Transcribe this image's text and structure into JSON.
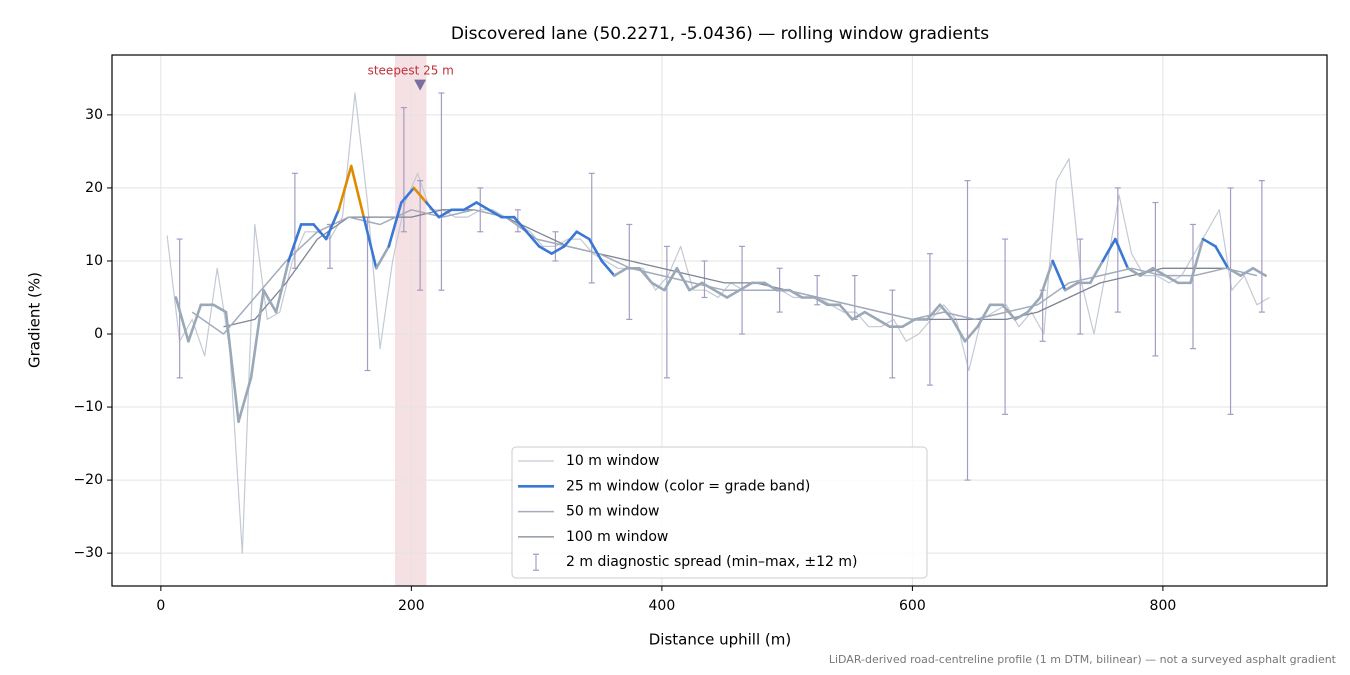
{
  "chart_data": {
    "type": "line",
    "title": "Discovered lane (50.2271, -5.0436) — rolling window gradients",
    "xlabel": "Distance uphill (m)",
    "ylabel": "Gradient (%)",
    "note": "LiDAR-derived road-centreline profile (1 m DTM, bilinear) — not a surveyed asphalt gradient",
    "xlim": [
      -39,
      931
    ],
    "ylim": [
      -34.5,
      38.2
    ],
    "xticks": [
      0,
      200,
      400,
      600,
      800
    ],
    "yticks": [
      {
        "value": -30,
        "label": "−30"
      },
      {
        "value": -20,
        "label": "−20"
      },
      {
        "value": -10,
        "label": "−10"
      },
      0,
      10,
      20,
      30
    ],
    "grid": true,
    "legend": "lower center",
    "highlight": {
      "x": [
        187,
        212
      ],
      "color": "#e8b4bc",
      "label": "steepest 25 m",
      "label_color": "#c0303a",
      "marker_x": 207,
      "marker_y": 34,
      "marker_color": "#7a6f9c"
    },
    "series": [
      {
        "name": "10 m window",
        "color": "#c3cad4",
        "width": 1.2,
        "x": [
          5,
          15,
          25,
          35,
          45,
          55,
          65,
          75,
          85,
          95,
          105,
          115,
          125,
          135,
          145,
          155,
          165,
          175,
          185,
          195,
          205,
          215,
          225,
          235,
          245,
          255,
          265,
          275,
          285,
          295,
          305,
          315,
          325,
          335,
          345,
          355,
          365,
          375,
          385,
          395,
          405,
          415,
          425,
          435,
          445,
          455,
          465,
          475,
          485,
          495,
          505,
          515,
          525,
          535,
          545,
          555,
          565,
          575,
          585,
          595,
          605,
          615,
          625,
          635,
          645,
          655,
          665,
          675,
          685,
          695,
          705,
          715,
          725,
          735,
          745,
          755,
          765,
          775,
          785,
          795,
          805,
          815,
          825,
          835,
          845,
          855,
          865,
          875,
          885
        ],
        "values": [
          13.5,
          -1,
          2,
          -3,
          9,
          -2,
          -30,
          15,
          2,
          3,
          10,
          14,
          14,
          13,
          16,
          33,
          18,
          -2,
          10,
          18,
          22,
          17,
          17,
          16,
          16,
          17,
          17,
          16,
          15,
          14,
          12,
          12,
          13,
          13,
          11,
          10,
          9,
          9,
          9,
          6,
          8,
          12,
          6,
          6,
          5,
          7,
          6,
          6,
          6,
          6,
          5,
          5,
          5,
          4,
          3,
          3,
          1,
          1,
          2,
          -1,
          0,
          2,
          4,
          2,
          -5,
          2,
          3,
          4,
          1,
          3,
          0,
          21,
          24,
          7,
          0,
          9,
          19,
          11,
          8,
          8,
          7,
          8,
          11,
          14,
          17,
          6,
          8,
          4,
          5
        ]
      },
      {
        "name": "25 m window (color = grade band)",
        "color": "#3a78d4",
        "width": 2.6,
        "x": [
          12,
          22,
          32,
          42,
          52,
          62,
          72,
          82,
          92,
          102,
          112,
          122,
          132,
          142,
          152,
          162,
          172,
          182,
          192,
          202,
          212,
          222,
          232,
          242,
          252,
          262,
          272,
          282,
          292,
          302,
          312,
          322,
          332,
          342,
          352,
          362,
          372,
          382,
          392,
          402,
          412,
          422,
          432,
          442,
          452,
          462,
          472,
          482,
          492,
          502,
          512,
          522,
          532,
          542,
          552,
          562,
          572,
          582,
          592,
          602,
          612,
          622,
          632,
          642,
          652,
          662,
          672,
          682,
          692,
          702,
          712,
          722,
          732,
          742,
          752,
          762,
          772,
          782,
          792,
          802,
          812,
          822,
          832,
          842,
          852,
          862,
          872,
          882
        ],
        "values": [
          5,
          -1,
          4,
          4,
          3,
          -12,
          -6,
          6,
          3,
          10,
          15,
          15,
          13,
          17,
          23,
          16,
          9,
          12,
          18,
          20,
          18,
          16,
          17,
          17,
          18,
          17,
          16,
          16,
          14,
          12,
          11,
          12,
          14,
          13,
          10,
          8,
          9,
          9,
          7,
          6,
          9,
          6,
          7,
          6,
          5,
          6,
          7,
          7,
          6,
          6,
          5,
          5,
          4,
          4,
          2,
          3,
          2,
          1,
          1,
          2,
          2,
          4,
          2,
          -1,
          1,
          4,
          4,
          2,
          3,
          5,
          10,
          6,
          7,
          7,
          10,
          13,
          9,
          8,
          9,
          8,
          7,
          7,
          13,
          12,
          9,
          8,
          9,
          8
        ],
        "point_colors": [
          "#9aa8b8",
          "#9aa8b8",
          "#9aa8b8",
          "#9aa8b8",
          "#9aa8b8",
          "#9aa8b8",
          "#9aa8b8",
          "#9aa8b8",
          "#9aa8b8",
          "#3a78d4",
          "#3a78d4",
          "#3a78d4",
          "#3a78d4",
          "#e08a00",
          "#e08a00",
          "#3a78d4",
          "#9aa8b8",
          "#3a78d4",
          "#3a78d4",
          "#e08a00",
          "#3a78d4",
          "#3a78d4",
          "#3a78d4",
          "#3a78d4",
          "#3a78d4",
          "#3a78d4",
          "#3a78d4",
          "#3a78d4",
          "#3a78d4",
          "#3a78d4",
          "#3a78d4",
          "#3a78d4",
          "#3a78d4",
          "#3a78d4",
          "#3a78d4",
          "#9aa8b8",
          "#9aa8b8",
          "#9aa8b8",
          "#9aa8b8",
          "#9aa8b8",
          "#9aa8b8",
          "#9aa8b8",
          "#9aa8b8",
          "#9aa8b8",
          "#9aa8b8",
          "#9aa8b8",
          "#9aa8b8",
          "#9aa8b8",
          "#9aa8b8",
          "#9aa8b8",
          "#9aa8b8",
          "#9aa8b8",
          "#9aa8b8",
          "#9aa8b8",
          "#9aa8b8",
          "#9aa8b8",
          "#9aa8b8",
          "#9aa8b8",
          "#9aa8b8",
          "#9aa8b8",
          "#9aa8b8",
          "#9aa8b8",
          "#9aa8b8",
          "#9aa8b8",
          "#9aa8b8",
          "#9aa8b8",
          "#9aa8b8",
          "#9aa8b8",
          "#9aa8b8",
          "#9aa8b8",
          "#3a78d4",
          "#9aa8b8",
          "#9aa8b8",
          "#9aa8b8",
          "#3a78d4",
          "#3a78d4",
          "#9aa8b8",
          "#9aa8b8",
          "#9aa8b8",
          "#9aa8b8",
          "#9aa8b8",
          "#9aa8b8",
          "#3a78d4",
          "#3a78d4",
          "#9aa8b8",
          "#9aa8b8",
          "#9aa8b8",
          "#9aa8b8"
        ]
      },
      {
        "name": "50 m window",
        "color": "#a3abbc",
        "width": 1.5,
        "x": [
          25,
          50,
          75,
          100,
          125,
          150,
          175,
          200,
          225,
          250,
          275,
          300,
          325,
          350,
          375,
          400,
          425,
          450,
          475,
          500,
          525,
          550,
          575,
          600,
          625,
          650,
          675,
          700,
          725,
          750,
          775,
          800,
          825,
          850,
          875
        ],
        "values": [
          3,
          0,
          5,
          10,
          14,
          16,
          15,
          17,
          16,
          17,
          16,
          13,
          12,
          11,
          9,
          8,
          7,
          6,
          6,
          6,
          5,
          4,
          3,
          2,
          3,
          2,
          3,
          4,
          7,
          8,
          9,
          8,
          8,
          9,
          8
        ]
      },
      {
        "name": "100 m window",
        "color": "#7e8594",
        "width": 1.3,
        "x": [
          50,
          75,
          100,
          125,
          150,
          175,
          200,
          225,
          250,
          275,
          300,
          325,
          350,
          375,
          400,
          425,
          450,
          475,
          500,
          525,
          550,
          575,
          600,
          625,
          650,
          675,
          700,
          725,
          750,
          775,
          800,
          825,
          850
        ],
        "values": [
          1,
          2,
          7,
          13,
          16,
          16,
          16,
          17,
          17,
          16,
          14,
          12,
          11,
          10,
          9,
          8,
          7,
          7,
          6,
          5,
          4,
          3,
          2,
          2,
          2,
          2,
          3,
          5,
          7,
          8,
          9,
          9,
          9
        ]
      },
      {
        "name": "2 m diagnostic spread (min–max, ±12 m)",
        "color": "#a49cc4",
        "kind": "errorbar",
        "x": [
          15,
          107,
          135,
          165,
          194,
          207,
          224,
          255,
          285,
          315,
          344,
          374,
          404,
          434,
          464,
          494,
          524,
          554,
          584,
          614,
          644,
          674,
          704,
          734,
          764,
          794,
          824,
          854,
          879
        ],
        "low": [
          -6,
          9,
          9,
          -5,
          14,
          6,
          6,
          14,
          14,
          10,
          7,
          2,
          -6,
          5,
          0,
          3,
          4,
          2,
          -6,
          -7,
          -20,
          -11,
          -1,
          0,
          3,
          -3,
          -2,
          -11,
          3
        ],
        "high": [
          13,
          22,
          15,
          16,
          31,
          21,
          33,
          20,
          17,
          14,
          22,
          15,
          12,
          10,
          12,
          9,
          8,
          8,
          6,
          11,
          21,
          13,
          6,
          13,
          20,
          18,
          15,
          20,
          21
        ]
      }
    ]
  }
}
